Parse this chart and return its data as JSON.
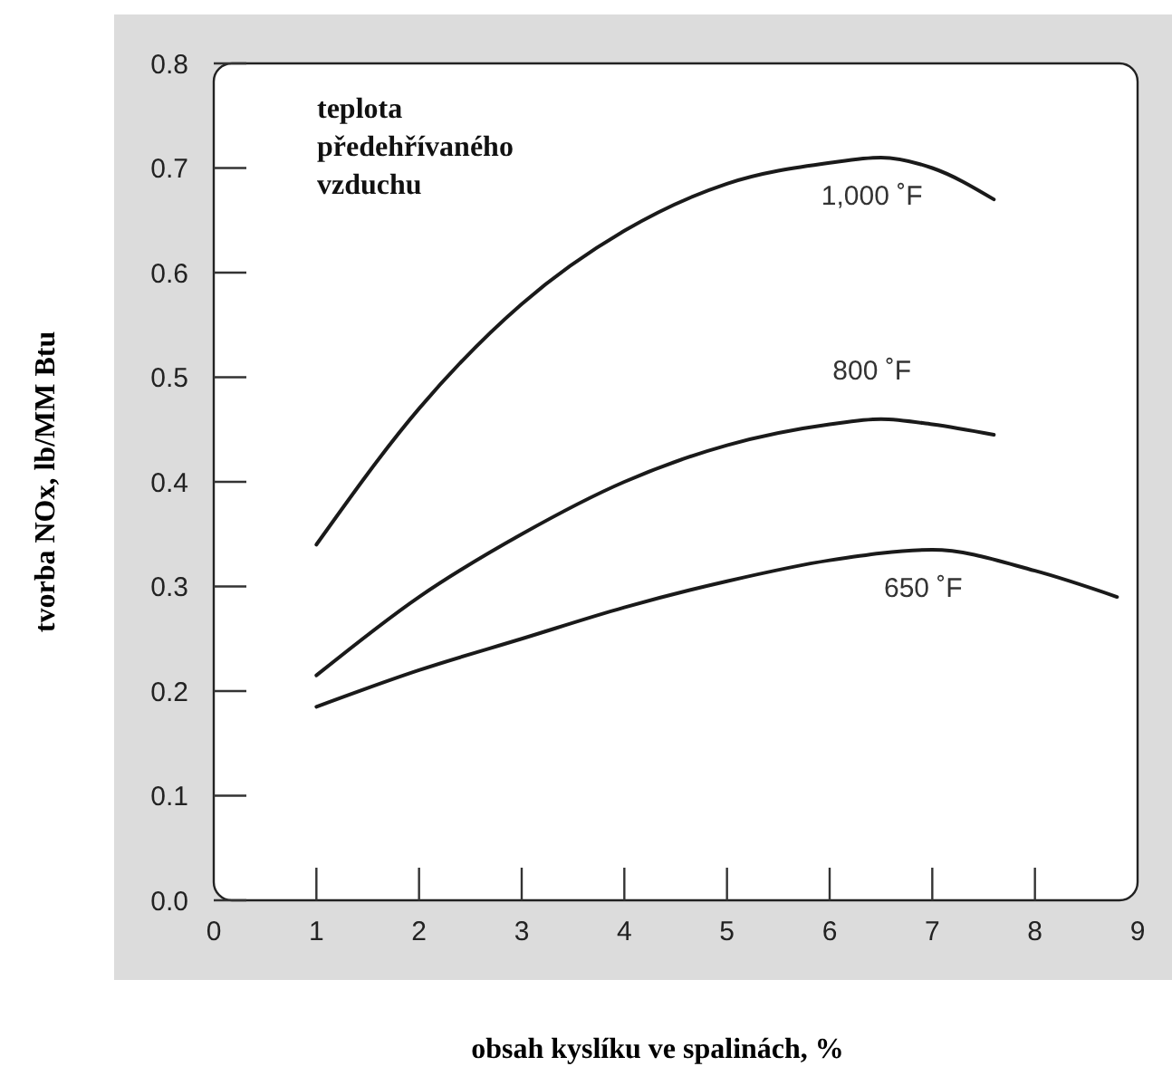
{
  "chart_data": {
    "type": "line",
    "xlabel": "obsah kyslíku ve spalinách, %",
    "ylabel": "tvorba NOx, lb/MM Btu",
    "legend_title": "teplota předehřívaného vzduchu",
    "xlim": [
      0,
      9
    ],
    "xticks": [
      0,
      1,
      2,
      3,
      4,
      5,
      6,
      7,
      8,
      9
    ],
    "ylim": [
      0,
      0.8
    ],
    "yticks": [
      {
        "value": 0,
        "label": "0.0"
      },
      0.1,
      0.2,
      0.3,
      0.4,
      0.5,
      0.6,
      0.7,
      0.8
    ],
    "grid": false,
    "marker": "none",
    "line_style": "solid",
    "series": [
      {
        "name": "1,000 ˚F",
        "color": "#1a1a1a",
        "x": [
          1,
          2,
          3,
          4,
          5,
          6,
          6.5,
          7,
          7.6
        ],
        "values": [
          0.34,
          0.47,
          0.57,
          0.64,
          0.685,
          0.705,
          0.71,
          0.7,
          0.67
        ]
      },
      {
        "name": "800 ˚F",
        "color": "#1a1a1a",
        "x": [
          1,
          2,
          3,
          4,
          5,
          6,
          6.5,
          7,
          7.6
        ],
        "values": [
          0.215,
          0.29,
          0.35,
          0.4,
          0.435,
          0.455,
          0.46,
          0.455,
          0.445
        ]
      },
      {
        "name": "650 ˚F",
        "color": "#1a1a1a",
        "x": [
          1,
          2,
          3,
          4,
          5,
          6,
          7,
          8,
          8.8
        ],
        "values": [
          0.185,
          0.22,
          0.25,
          0.28,
          0.305,
          0.325,
          0.335,
          0.315,
          0.29
        ]
      }
    ]
  }
}
